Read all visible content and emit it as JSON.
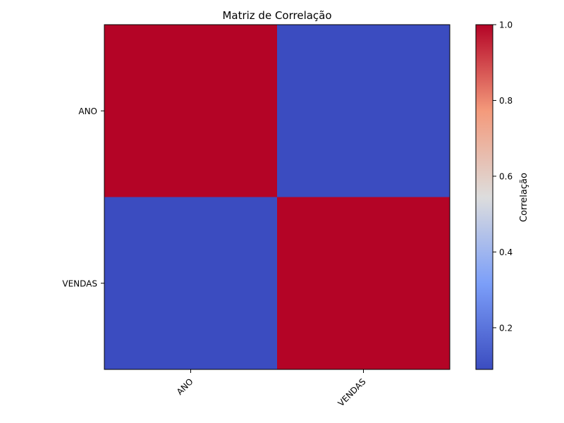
{
  "chart_data": {
    "type": "heatmap",
    "title": "Matriz de Correlação",
    "x_categories": [
      "ANO",
      "VENDAS"
    ],
    "y_categories": [
      "ANO",
      "VENDAS"
    ],
    "values": [
      [
        1.0,
        0.09
      ],
      [
        0.09,
        1.0
      ]
    ],
    "colormap": "coolwarm",
    "colorbar": {
      "label": "Correlação",
      "range": [
        0.09,
        1.0
      ],
      "ticks": [
        0.2,
        0.4,
        0.6,
        0.8,
        1.0
      ],
      "tick_labels": [
        "0.2",
        "0.4",
        "0.6",
        "0.8",
        "1.0"
      ]
    },
    "x_tick_rotation_deg": 45,
    "grid": false,
    "legend": "colorbar-right"
  }
}
